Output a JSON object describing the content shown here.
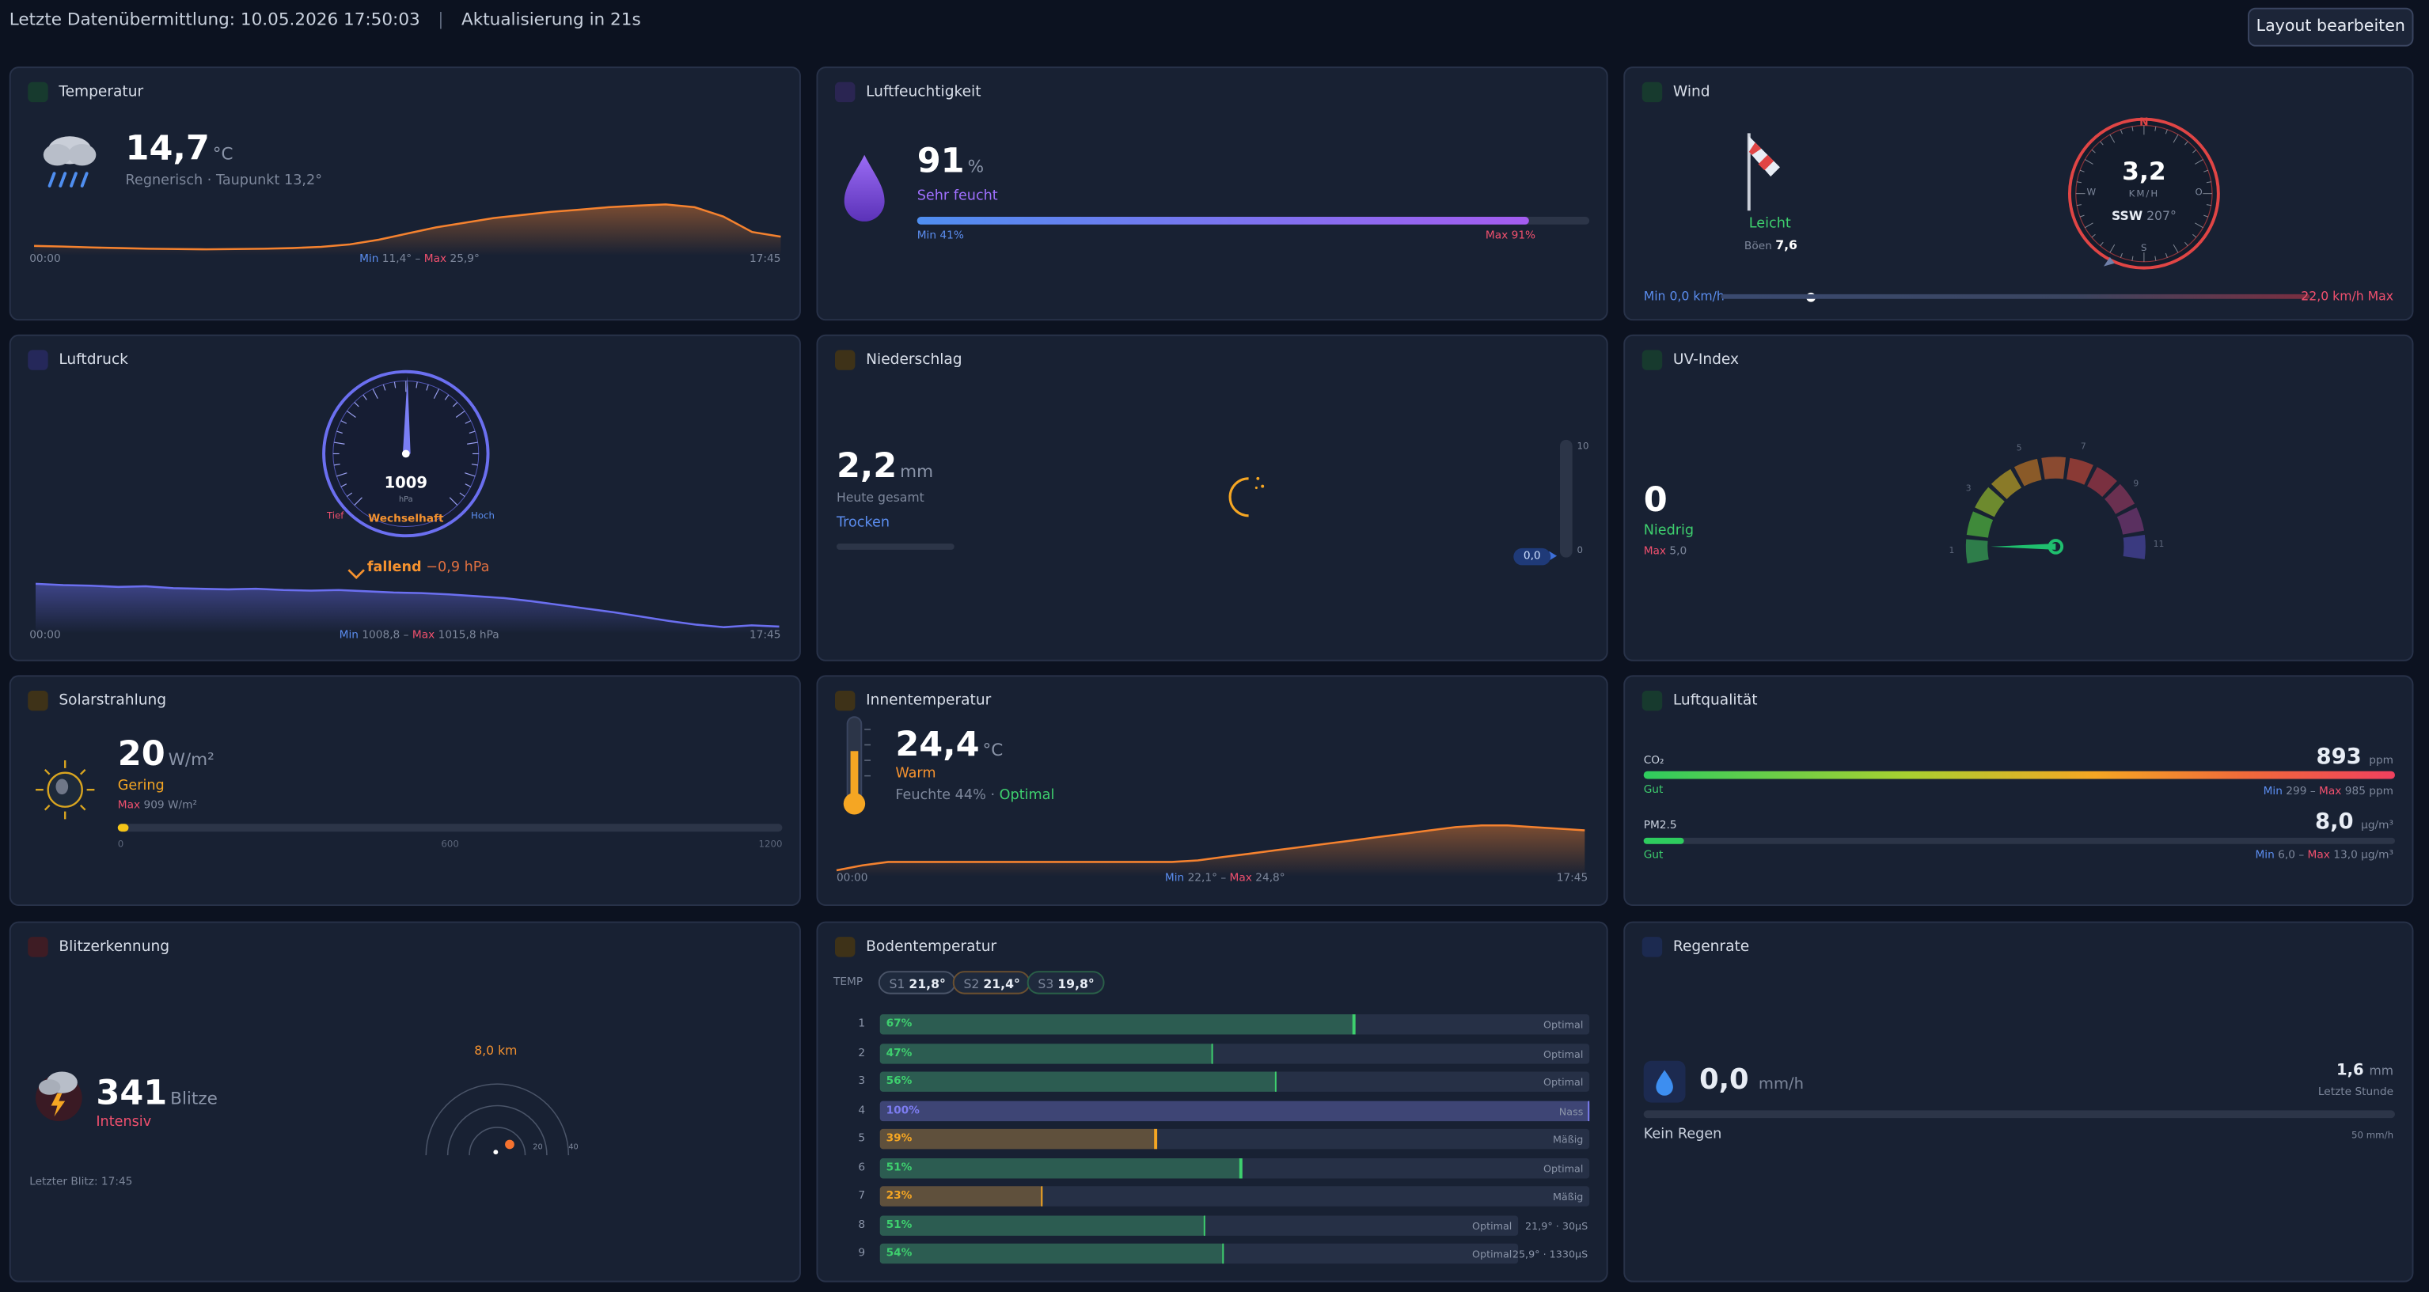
{
  "header": {
    "last_transmission": "Letzte Datenübermittlung: 10.05.2026 17:50:03",
    "separator": "|",
    "refresh": "Aktualisierung in 21s",
    "edit_button": "Layout bearbeiten"
  },
  "temperature": {
    "title": "Temperatur",
    "value": "14,7",
    "unit": "°C",
    "description": "Regnerisch · Taupunkt 13,2°",
    "start": "00:00",
    "end": "17:45",
    "min_label": "Min",
    "min": "11,4°",
    "dash": "–",
    "max_label": "Max",
    "max": "25,9°",
    "trend": [
      12.5,
      12.3,
      12.0,
      11.8,
      11.6,
      11.5,
      11.4,
      11.5,
      11.6,
      11.8,
      12.2,
      13.0,
      14.5,
      16.5,
      18.5,
      20.0,
      21.5,
      22.5,
      23.5,
      24.2,
      25.0,
      25.5,
      25.9,
      25.0,
      22.0,
      17.0,
      15.5
    ]
  },
  "humidity": {
    "title": "Luftfeuchtigkeit",
    "value": 91,
    "unit": "%",
    "description": "Sehr feucht",
    "range": [
      0,
      100
    ],
    "min": "Min 41%",
    "max": "Max 91%"
  },
  "wind": {
    "title": "Wind",
    "strength": "Leicht",
    "gust_label": "Böen",
    "gust": "7,6",
    "north": "N",
    "east": "O",
    "south": "S",
    "west": "W",
    "speed": "3,2",
    "speed_unit": "KM/H",
    "direction": "SSW",
    "degrees": "207°",
    "min": "Min 0,0 km/h",
    "max": "22,0 km/h Max"
  },
  "pressure": {
    "title": "Luftdruck",
    "value": "1009",
    "unit": "hPa",
    "low": "Tief",
    "state": "Wechselhaft",
    "high": "Hoch",
    "tendency": "fallend",
    "change": "−0,9 hPa",
    "start": "00:00",
    "end": "17:45",
    "min_label": "Min",
    "min": "1008,8",
    "dash": "–",
    "max_label": "Max",
    "max": "1015,8 hPa",
    "trend": [
      1015.8,
      1015.6,
      1015.5,
      1015.3,
      1015.4,
      1015.1,
      1015.0,
      1014.9,
      1015.0,
      1014.8,
      1014.7,
      1014.8,
      1014.6,
      1014.4,
      1014.3,
      1014.1,
      1013.8,
      1013.5,
      1013.0,
      1012.4,
      1011.8,
      1011.2,
      1010.5,
      1009.8,
      1009.2,
      1008.8,
      1009.1,
      1008.9
    ]
  },
  "precipitation": {
    "title": "Niederschlag",
    "value": "2,2",
    "unit": "mm",
    "description": "Heute gesamt",
    "state": "Trocken",
    "scale_top": "10",
    "scale_bottom": "0",
    "current": "0,0"
  },
  "uv": {
    "title": "UV-Index",
    "value": "0",
    "state": "Niedrig",
    "max_label": "Max",
    "max": "5,0",
    "scale": [
      "1",
      "3",
      "5",
      "7",
      "9",
      "11"
    ]
  },
  "solar": {
    "title": "Solarstrahlung",
    "value": 20,
    "unit": "W/m²",
    "state": "Gering",
    "max_label": "Max",
    "max": "909 W/m²",
    "range": [
      0,
      1200
    ],
    "ticks": [
      0,
      600,
      1200
    ]
  },
  "indoor": {
    "title": "Innentemperatur",
    "value": "24,4",
    "unit": "°C",
    "state": "Warm",
    "humidity": "Feuchte 44% ·",
    "humidity_state": "Optimal",
    "start": "00:00",
    "end": "17:45",
    "min_label": "Min",
    "min": "22,1°",
    "dash": "–",
    "max_label": "Max",
    "max": "24,8°",
    "trend": [
      22.1,
      22.4,
      22.6,
      22.6,
      22.6,
      22.6,
      22.6,
      22.6,
      22.6,
      22.6,
      22.6,
      22.6,
      22.6,
      22.6,
      22.7,
      22.9,
      23.1,
      23.3,
      23.5,
      23.7,
      23.9,
      24.1,
      24.3,
      24.5,
      24.7,
      24.8,
      24.8,
      24.7,
      24.6,
      24.5
    ]
  },
  "air_quality": {
    "title": "Luftqualität",
    "co2_label": "CO₂",
    "co2": "893",
    "co2_unit": "ppm",
    "co2_state": "Gut",
    "co2_min_label": "Min",
    "co2_min": "299",
    "dash": "–",
    "co2_max_label": "Max",
    "co2_max": "985 ppm",
    "pm_label": "PM2.5",
    "pm": "8,0",
    "pm_unit": "µg/m³",
    "pm_state": "Gut",
    "pm_min_label": "Min",
    "pm_min": "6,0",
    "pm_max_label": "Max",
    "pm_max": "13,0 µg/m³"
  },
  "lightning": {
    "title": "Blitzerkennung",
    "value": "341",
    "unit": "Blitze",
    "state": "Intensiv",
    "last": "Letzter Blitz: 17:45",
    "distance": "8,0 km",
    "ring_20": "20",
    "ring_40": "40"
  },
  "soil": {
    "title": "Bodentemperatur",
    "temp_label": "TEMP",
    "sensors": [
      {
        "name": "S1",
        "value": "21,8°"
      },
      {
        "name": "S2",
        "value": "21,4°"
      },
      {
        "name": "S3",
        "value": "19,8°"
      }
    ],
    "range": [
      0,
      100
    ],
    "rows": [
      {
        "index": 1,
        "value": 67,
        "label": "67%",
        "status": "Optimal",
        "color": "#3ecf6e"
      },
      {
        "index": 2,
        "value": 47,
        "label": "47%",
        "status": "Optimal",
        "color": "#3ecf6e"
      },
      {
        "index": 3,
        "value": 56,
        "label": "56%",
        "status": "Optimal",
        "color": "#3ecf6e"
      },
      {
        "index": 4,
        "value": 100,
        "label": "100%",
        "status": "Nass",
        "color": "#7c7cf0"
      },
      {
        "index": 5,
        "value": 39,
        "label": "39%",
        "status": "Mäßig",
        "color": "#f5a623"
      },
      {
        "index": 6,
        "value": 51,
        "label": "51%",
        "status": "Optimal",
        "color": "#3ecf6e"
      },
      {
        "index": 7,
        "value": 23,
        "label": "23%",
        "status": "Mäßig",
        "color": "#f5a623"
      },
      {
        "index": 8,
        "value": 51,
        "label": "51%",
        "status": "Optimal",
        "color": "#3ecf6e",
        "extra": "21,9° · 30µS"
      },
      {
        "index": 9,
        "value": 54,
        "label": "54%",
        "status": "Optimal",
        "color": "#3ecf6e",
        "extra": "25,9° · 1330µS"
      }
    ]
  },
  "rain_rate": {
    "title": "Regenrate",
    "value": "0,0",
    "unit": "mm/h",
    "hour_value": "1,6",
    "hour_unit": "mm",
    "hour_label": "Letzte Stunde",
    "state": "Kein Regen",
    "scale_max": "50 mm/h"
  }
}
